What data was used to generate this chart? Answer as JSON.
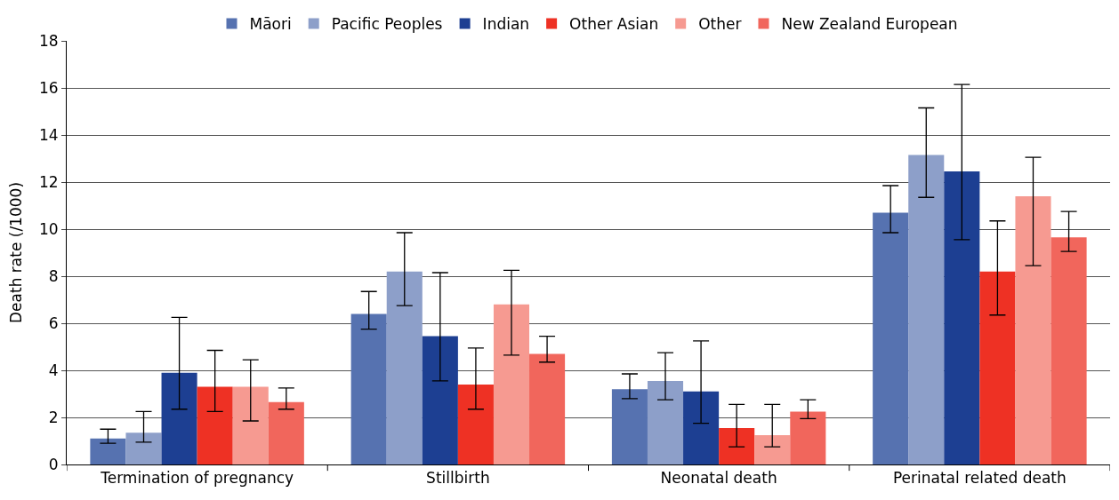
{
  "chart_data": {
    "type": "bar",
    "ylabel": "Death rate (/1000)",
    "categories": [
      "Termination of pregnancy",
      "Stillbirth",
      "Neonatal death",
      "Perinatal related death"
    ],
    "series": [
      {
        "name": "Māori",
        "color": "#5672b0",
        "values": [
          1.1,
          6.4,
          3.2,
          10.7
        ],
        "errors": [
          [
            0.9,
            1.5
          ],
          [
            5.75,
            7.35
          ],
          [
            2.8,
            3.85
          ],
          [
            9.85,
            11.85
          ]
        ]
      },
      {
        "name": "Pacific Peoples",
        "color": "#8d9fc9",
        "values": [
          1.35,
          8.2,
          3.55,
          13.15
        ],
        "errors": [
          [
            0.95,
            2.25
          ],
          [
            6.75,
            9.85
          ],
          [
            2.75,
            4.75
          ],
          [
            11.35,
            15.15
          ]
        ]
      },
      {
        "name": "Indian",
        "color": "#1d3f92",
        "values": [
          3.9,
          5.45,
          3.1,
          12.45
        ],
        "errors": [
          [
            2.35,
            6.25
          ],
          [
            3.55,
            8.15
          ],
          [
            1.75,
            5.25
          ],
          [
            9.55,
            16.15
          ]
        ]
      },
      {
        "name": "Other Asian",
        "color": "#ee3124",
        "values": [
          3.3,
          3.4,
          1.55,
          8.2
        ],
        "errors": [
          [
            2.25,
            4.85
          ],
          [
            2.35,
            4.95
          ],
          [
            0.75,
            2.55
          ],
          [
            6.35,
            10.35
          ]
        ]
      },
      {
        "name": "Other",
        "color": "#f69a91",
        "values": [
          3.3,
          6.8,
          1.25,
          11.4
        ],
        "errors": [
          [
            1.85,
            4.45
          ],
          [
            4.65,
            8.25
          ],
          [
            0.75,
            2.55
          ],
          [
            8.45,
            13.05
          ]
        ]
      },
      {
        "name": "New Zealand European",
        "color": "#f1665c",
        "values": [
          2.65,
          4.7,
          2.25,
          9.65
        ],
        "errors": [
          [
            2.35,
            3.25
          ],
          [
            4.35,
            5.45
          ],
          [
            1.95,
            2.75
          ],
          [
            9.05,
            10.75
          ]
        ]
      }
    ],
    "ylim": [
      0,
      18
    ],
    "yticks": [
      0,
      2,
      4,
      6,
      8,
      10,
      12,
      14,
      16,
      18
    ],
    "grid": "y",
    "legend": "top"
  }
}
